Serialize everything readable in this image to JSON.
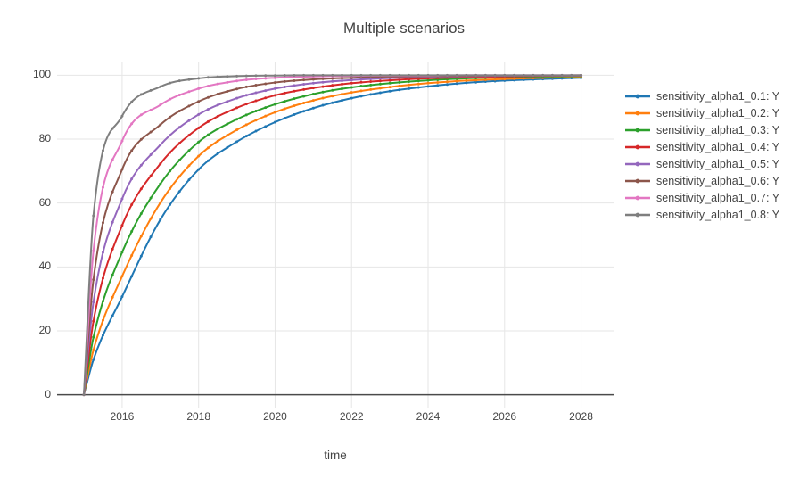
{
  "title": "Multiple scenarios",
  "chart_data": {
    "type": "line",
    "title": "Multiple scenarios",
    "xlabel": "time",
    "ylabel": "",
    "legend_position": "right",
    "grid": true,
    "xlim": [
      2014.3,
      2028.85
    ],
    "ylim": [
      -4,
      104
    ],
    "xticks": [
      2016,
      2018,
      2020,
      2022,
      2024,
      2026,
      2028
    ],
    "yticks": [
      0,
      20,
      40,
      60,
      80,
      100
    ],
    "marker_interval_years": 0.25,
    "x": [
      2015,
      2015.25,
      2016,
      2017,
      2018,
      2019,
      2020,
      2021,
      2022,
      2023,
      2024,
      2025,
      2026,
      2027,
      2028
    ],
    "series": [
      {
        "name": "sensitivity_alpha1_0.1: Y",
        "color": "#1f77b4",
        "values": [
          0,
          11,
          30.7,
          54.8,
          70.5,
          79.2,
          85.3,
          89.7,
          92.8,
          95.0,
          96.5,
          97.6,
          98.3,
          98.8,
          99.2
        ]
      },
      {
        "name": "sensitivity_alpha1_0.2: Y",
        "color": "#ff7f0e",
        "values": [
          0,
          14,
          37.1,
          60.1,
          74.7,
          82.9,
          88.4,
          92.1,
          94.6,
          96.3,
          97.5,
          98.3,
          98.8,
          99.2,
          99.5
        ]
      },
      {
        "name": "sensitivity_alpha1_0.3: Y",
        "color": "#2ca02c",
        "values": [
          0,
          18,
          44.6,
          66.0,
          79.1,
          86.2,
          90.9,
          94.1,
          96.2,
          97.5,
          98.4,
          99.0,
          99.4,
          99.6,
          99.7
        ]
      },
      {
        "name": "sensitivity_alpha1_0.4: Y",
        "color": "#d62728",
        "values": [
          0,
          23,
          53.0,
          72.3,
          83.5,
          89.8,
          93.7,
          96.0,
          97.5,
          98.4,
          99.0,
          99.4,
          99.6,
          99.8,
          99.9
        ]
      },
      {
        "name": "sensitivity_alpha1_0.5: Y",
        "color": "#9467bd",
        "values": [
          0,
          29,
          61.3,
          78.2,
          87.7,
          92.8,
          95.8,
          97.5,
          98.5,
          99.1,
          99.5,
          99.7,
          99.8,
          99.9,
          99.9
        ]
      },
      {
        "name": "sensitivity_alpha1_0.6: Y",
        "color": "#8c564b",
        "values": [
          0,
          36,
          70.5,
          84.5,
          91.8,
          95.7,
          97.7,
          98.7,
          99.2,
          99.6,
          99.7,
          99.8,
          99.9,
          99.9,
          100
        ]
      },
      {
        "name": "sensitivity_alpha1_0.7: Y",
        "color": "#e377c2",
        "values": [
          0,
          45,
          79.4,
          90.7,
          95.8,
          98.2,
          99.2,
          99.6,
          99.8,
          99.9,
          99.9,
          100,
          100,
          100,
          100
        ]
      },
      {
        "name": "sensitivity_alpha1_0.8: Y",
        "color": "#7f7f7f",
        "values": [
          0,
          56,
          87.2,
          96.4,
          99.0,
          99.7,
          99.9,
          100,
          100,
          100,
          100,
          100,
          100,
          100,
          100
        ]
      }
    ]
  },
  "colors": {
    "background": "#ffffff",
    "grid": "#e6e6e6",
    "zeroline": "#4a4a4a",
    "text": "#444444"
  }
}
